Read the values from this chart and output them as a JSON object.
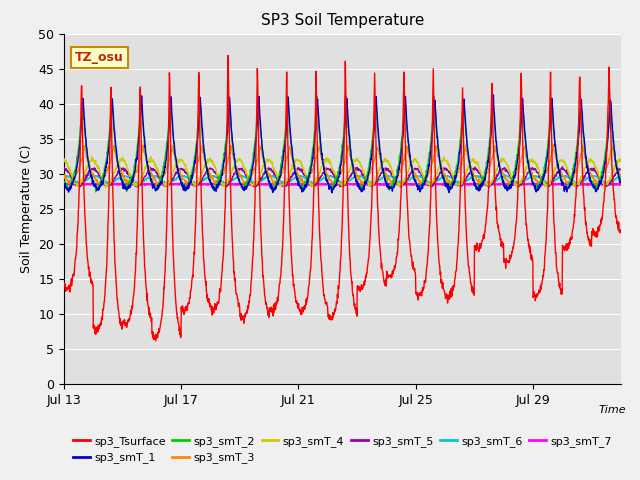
{
  "title": "SP3 Soil Temperature",
  "xlabel": "Time",
  "ylabel": "Soil Temperature (C)",
  "ylim": [
    0,
    50
  ],
  "yticks": [
    0,
    5,
    10,
    15,
    20,
    25,
    30,
    35,
    40,
    45,
    50
  ],
  "xtick_labels": [
    "Jul 13",
    "Jul 17",
    "Jul 21",
    "Jul 25",
    "Jul 29"
  ],
  "xtick_positions": [
    0,
    4,
    8,
    12,
    16
  ],
  "xlim": [
    0,
    19
  ],
  "annotation_text": "TZ_osu",
  "annotation_bg": "#ffffcc",
  "annotation_border": "#cc8800",
  "plot_bg": "#e0e0e0",
  "fig_bg": "#f0f0f0",
  "legend_entries": [
    {
      "label": "sp3_Tsurface",
      "color": "#ff0000"
    },
    {
      "label": "sp3_smT_1",
      "color": "#0000cc"
    },
    {
      "label": "sp3_smT_2",
      "color": "#00cc00"
    },
    {
      "label": "sp3_smT_3",
      "color": "#ff8800"
    },
    {
      "label": "sp3_smT_4",
      "color": "#cccc00"
    },
    {
      "label": "sp3_smT_5",
      "color": "#9900aa"
    },
    {
      "label": "sp3_smT_6",
      "color": "#00cccc"
    },
    {
      "label": "sp3_smT_7",
      "color": "#ff00ff"
    }
  ],
  "n_days": 19,
  "pts_per_day": 96,
  "surface_base": 28.5,
  "surface_night_min": 7.0,
  "surface_day_max": 47.0,
  "smT1_base": 29.5,
  "smT1_amp": 11.5,
  "smT2_base": 29.5,
  "smT2_amp": 12.0,
  "smT3_base": 30.0,
  "smT3_amp": 4.5,
  "smT4_base": 30.2,
  "smT4_amp": 1.8,
  "smT5_base": 29.5,
  "smT5_amp": 1.2,
  "smT6_base": 29.2,
  "smT6_amp": 0.5,
  "smT7_flat": 28.5
}
